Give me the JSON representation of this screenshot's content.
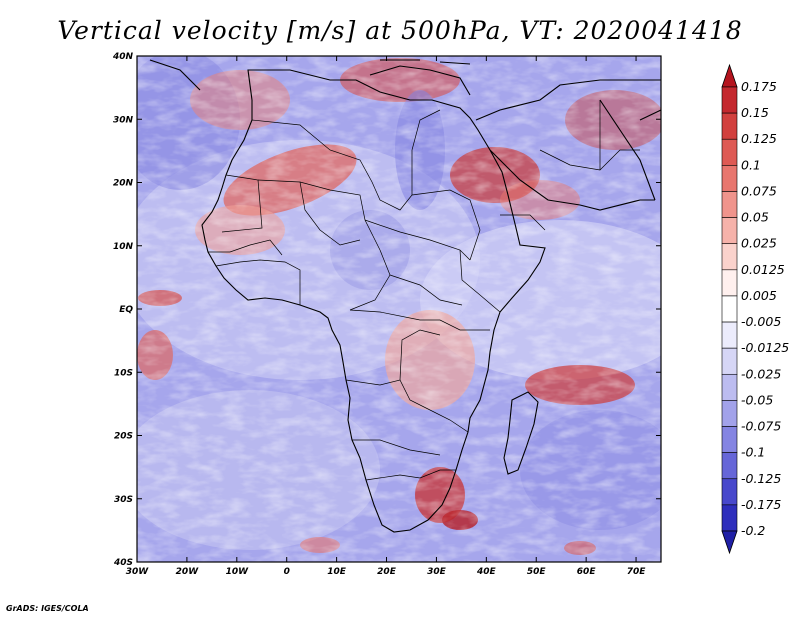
{
  "title": "Vertical velocity [m/s] at 500hPa, VT: 2020041418",
  "credit": "GrADS: IGES/COLA",
  "lat_ticks": [
    "40N",
    "30N",
    "20N",
    "10N",
    "EQ",
    "10S",
    "20S",
    "30S",
    "40S"
  ],
  "lon_ticks": [
    "30W",
    "20W",
    "10W",
    "0",
    "10E",
    "20E",
    "30E",
    "40E",
    "50E",
    "60E",
    "70E"
  ],
  "colorbar": {
    "labels": [
      "0.175",
      "0.15",
      "0.125",
      "0.1",
      "0.075",
      "0.05",
      "0.025",
      "0.0125",
      "0.005",
      "-0.005",
      "-0.0125",
      "-0.025",
      "-0.05",
      "-0.075",
      "-0.1",
      "-0.125",
      "-0.175",
      "-0.2"
    ],
    "colors": [
      "#b4141e",
      "#c4282e",
      "#d2403e",
      "#de5a54",
      "#e8766e",
      "#f0948c",
      "#f6b2aa",
      "#fad2cc",
      "#fff0ee",
      "#ffffff",
      "#ececfc",
      "#d6d6f6",
      "#bcbcf0",
      "#a2a2ea",
      "#8484e2",
      "#6666d8",
      "#4848cc",
      "#2e2ebc",
      "#2020a6"
    ]
  },
  "colors": {
    "background_field": "#a8a8ee",
    "land_outline": "#000000",
    "updraft": "#e8766e",
    "downdraft": "#8484e2"
  }
}
